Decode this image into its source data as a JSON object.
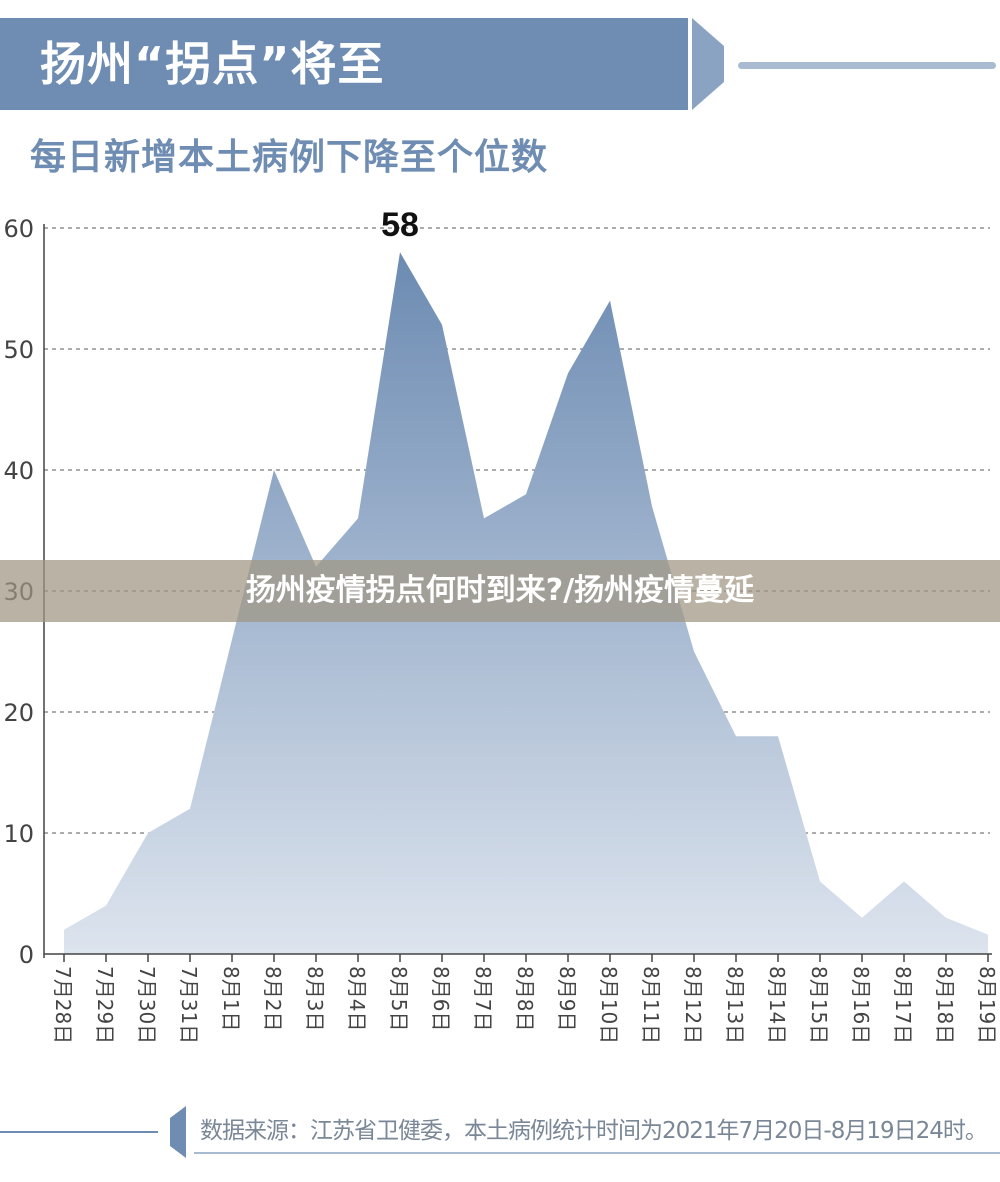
{
  "header": {
    "title": "扬州“拐点”将至",
    "subtitle": "每日新增本土病例下降至个位数"
  },
  "watermark": "扬州疫情拐点何时到来?/扬州疫情蔓延",
  "footer": {
    "source": "数据来源：江苏省卫健委，本土病例统计时间为2021年7月20日-8月19日24时。"
  },
  "colors": {
    "accent": "#6f8db3",
    "area_top": "#6c8bb2",
    "area_bottom": "#dde4ee"
  },
  "chart_data": {
    "type": "area",
    "title": "每日新增本土病例下降至个位数",
    "categories": [
      "7月28日",
      "7月29日",
      "7月30日",
      "7月31日",
      "8月1日",
      "8月2日",
      "8月3日",
      "8月4日",
      "8月5日",
      "8月6日",
      "8月7日",
      "8月8日",
      "8月9日",
      "8月10日",
      "8月11日",
      "8月12日",
      "8月13日",
      "8月14日",
      "8月15日",
      "8月16日",
      "8月17日",
      "8月18日",
      "8月19日"
    ],
    "values": [
      2,
      4,
      10,
      12,
      26,
      40,
      32,
      36,
      58,
      52,
      36,
      38,
      48,
      54,
      37,
      25,
      18,
      18,
      6,
      3,
      6,
      3,
      1.6
    ],
    "ylim": [
      0,
      60
    ],
    "yticks": [
      0,
      10,
      20,
      30,
      40,
      50,
      60
    ],
    "annotations": [
      {
        "category": "8月5日",
        "text": "58"
      }
    ],
    "grid": true
  }
}
